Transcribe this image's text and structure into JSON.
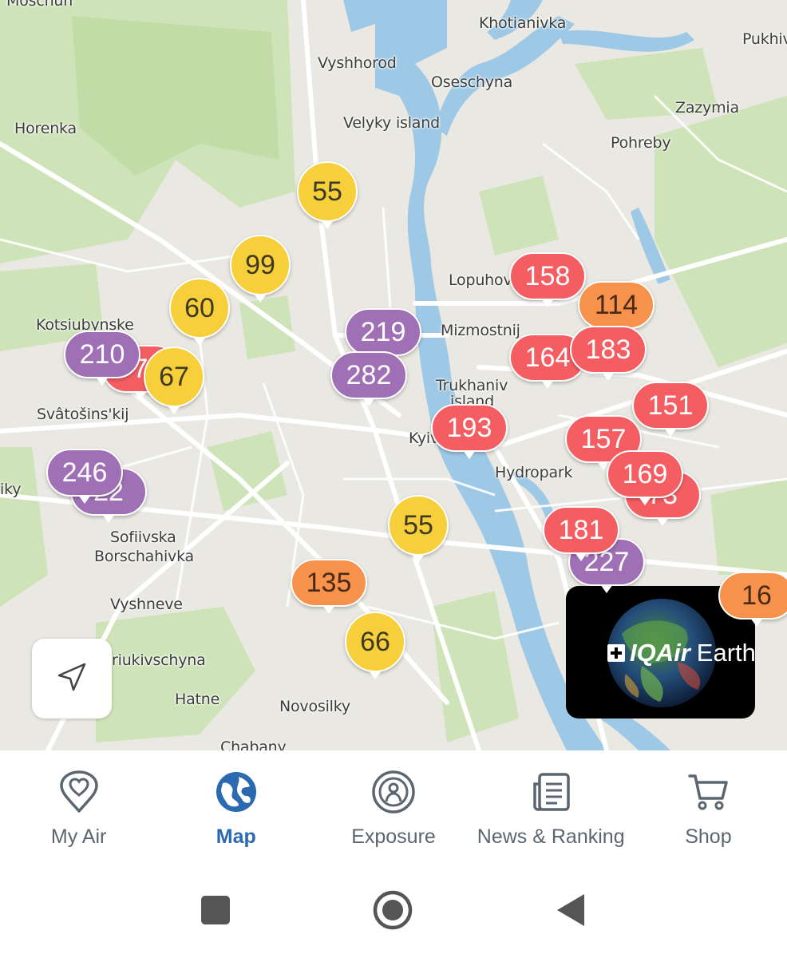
{
  "map": {
    "places": [
      {
        "name": "Moschun"
      },
      {
        "name": "Khotianivka"
      },
      {
        "name": "Pukhiv"
      },
      {
        "name": "Vyshhorod"
      },
      {
        "name": "Oseschyna"
      },
      {
        "name": "Zazymia"
      },
      {
        "name": "Horenka"
      },
      {
        "name": "Velyky island"
      },
      {
        "name": "Pohreby"
      },
      {
        "name": "Lopuhov"
      },
      {
        "name": "Kotsiubynske"
      },
      {
        "name": "Mizmostnij"
      },
      {
        "name": "Trukhaniv"
      },
      {
        "name": "island"
      },
      {
        "name": "Svâtošins'kij"
      },
      {
        "name": "Kyiv"
      },
      {
        "name": "Hydropark"
      },
      {
        "name": "iky"
      },
      {
        "name": "Sofiivska"
      },
      {
        "name": "Borschahivka"
      },
      {
        "name": "Vyshneve"
      },
      {
        "name": "riukivschyna"
      },
      {
        "name": "Hatne"
      },
      {
        "name": "Novosilky"
      },
      {
        "name": "Chabany"
      }
    ],
    "markers": [
      {
        "value": "55",
        "level": "moderate"
      },
      {
        "value": "99",
        "level": "moderate"
      },
      {
        "value": "60",
        "level": "moderate"
      },
      {
        "value": "7",
        "level": "unhealthy"
      },
      {
        "value": "210",
        "level": "very-unhealthy"
      },
      {
        "value": "67",
        "level": "moderate"
      },
      {
        "value": "219",
        "level": "very-unhealthy"
      },
      {
        "value": "282",
        "level": "very-unhealthy"
      },
      {
        "value": "158",
        "level": "unhealthy"
      },
      {
        "value": "114",
        "level": "sensitive"
      },
      {
        "value": "164",
        "level": "unhealthy"
      },
      {
        "value": "183",
        "level": "unhealthy"
      },
      {
        "value": "151",
        "level": "unhealthy"
      },
      {
        "value": "193",
        "level": "unhealthy"
      },
      {
        "value": "157",
        "level": "unhealthy"
      },
      {
        "value": "73",
        "level": "unhealthy"
      },
      {
        "value": "169",
        "level": "unhealthy"
      },
      {
        "value": "22",
        "level": "very-unhealthy"
      },
      {
        "value": "246",
        "level": "very-unhealthy"
      },
      {
        "value": "55",
        "level": "moderate"
      },
      {
        "value": "227",
        "level": "very-unhealthy"
      },
      {
        "value": "181",
        "level": "unhealthy"
      },
      {
        "value": "135",
        "level": "sensitive"
      },
      {
        "value": "16",
        "level": "sensitive"
      },
      {
        "value": "66",
        "level": "moderate"
      }
    ],
    "level_colors": {
      "moderate": "#f7cf3a",
      "sensitive": "#f7924c",
      "unhealthy": "#f45e63",
      "very-unhealthy": "#a070b6"
    },
    "level_text_colors": {
      "moderate": "#3d3a22",
      "sensitive": "#4a2a14",
      "unhealthy": "#ffffff",
      "very-unhealthy": "#ffffff"
    },
    "locate_icon": "navigation-arrow-icon",
    "earth_promo": {
      "brand": "IQAir",
      "label": "Earth"
    }
  },
  "tabs": [
    {
      "label": "My Air",
      "icon": "heart-pin-icon",
      "active": false
    },
    {
      "label": "Map",
      "icon": "globe-icon",
      "active": true
    },
    {
      "label": "Exposure",
      "icon": "exposure-person-icon",
      "active": false
    },
    {
      "label": "News & Ranking",
      "icon": "news-icon",
      "active": false
    },
    {
      "label": "Shop",
      "icon": "cart-icon",
      "active": false
    }
  ],
  "system_nav": {
    "square": "recent-apps-icon",
    "circle": "home-icon",
    "triangle": "back-icon"
  },
  "colors": {
    "accent": "#2b6ab0",
    "inactive": "#5b6670",
    "water": "#9ec9e6",
    "park": "#cfe3b8",
    "land": "#e9e8e2",
    "road": "#ffffff"
  }
}
